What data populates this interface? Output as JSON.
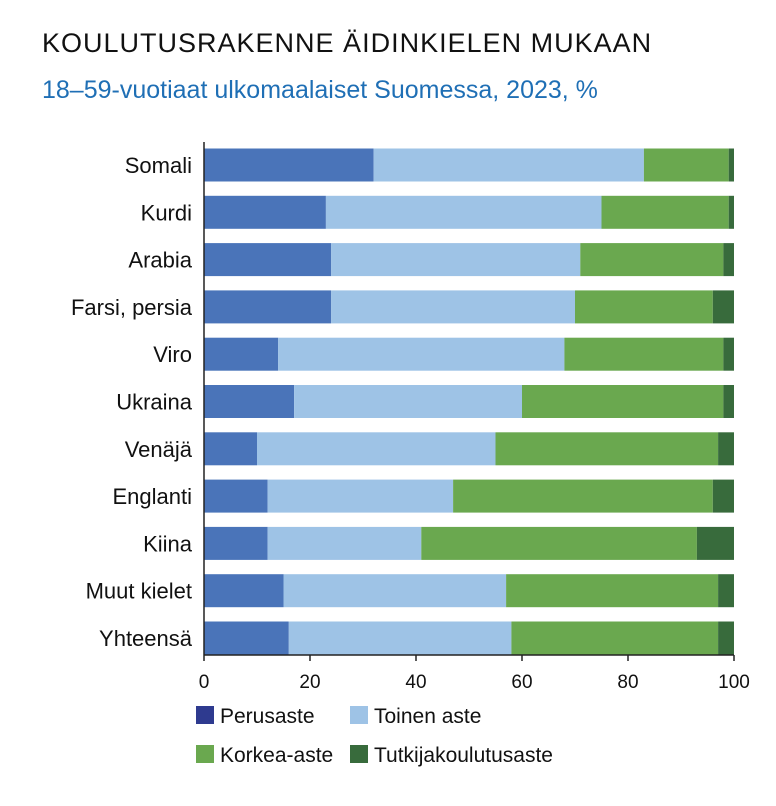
{
  "title": "KOULUTUSRAKENNE ÄIDINKIELEN MUKAAN",
  "subtitle": "18–59-vuotiaat ulkomaalaiset Suomessa,  2023, %",
  "chart_data": {
    "type": "bar",
    "orientation": "horizontal",
    "stacked": true,
    "title": "KOULUTUSRAKENNE ÄIDINKIELEN MUKAAN",
    "subtitle": "18–59-vuotiaat ulkomaalaiset Suomessa,  2023, %",
    "xlim": [
      0,
      100
    ],
    "xticks": [
      0,
      20,
      40,
      60,
      80,
      100
    ],
    "grid": false,
    "legend_placement": "bottom",
    "categories": [
      "Somali",
      "Kurdi",
      "Arabia",
      "Farsi, persia",
      "Viro",
      "Ukraina",
      "Venäjä",
      "Englanti",
      "Kiina",
      "Muut kielet",
      "Yhteensä"
    ],
    "series": [
      {
        "name": "Perusaste",
        "color": "#4a74b9",
        "legend_color": "#2e3a8f",
        "values": [
          32,
          23,
          24,
          24,
          14,
          17,
          10,
          12,
          12,
          15,
          16
        ]
      },
      {
        "name": "Toinen aste",
        "color": "#9ec3e6",
        "values": [
          51,
          52,
          47,
          46,
          54,
          43,
          45,
          35,
          29,
          42,
          42
        ]
      },
      {
        "name": "Korkea-aste",
        "color": "#6aa84f",
        "values": [
          16,
          24,
          27,
          26,
          30,
          38,
          42,
          49,
          52,
          40,
          39
        ]
      },
      {
        "name": "Tutkijakoulutusaste",
        "color": "#386b3c",
        "values": [
          1,
          1,
          2,
          4,
          2,
          2,
          3,
          4,
          7,
          3,
          3
        ]
      }
    ]
  }
}
